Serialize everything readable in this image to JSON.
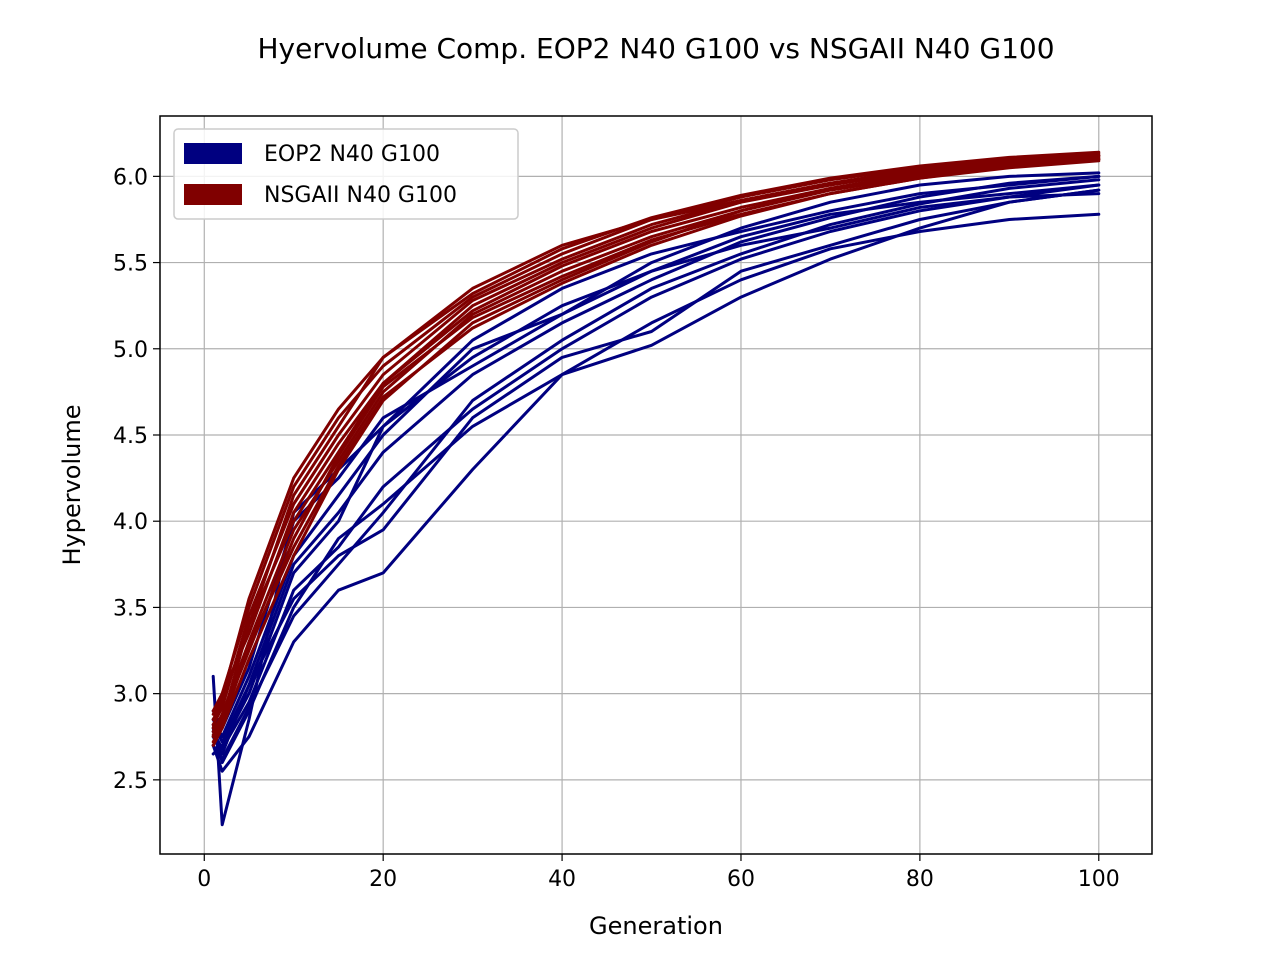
{
  "chart_data": {
    "type": "line",
    "title": "Hyervolume Comp. EOP2 N40 G100 vs NSGAII N40 G100",
    "xlabel": "Generation",
    "ylabel": "Hypervolume",
    "xlim": [
      -4.95,
      105.95
    ],
    "ylim": [
      2.07,
      6.35
    ],
    "xticks": [
      0,
      20,
      40,
      60,
      80,
      100
    ],
    "yticks": [
      2.5,
      3.0,
      3.5,
      4.0,
      4.5,
      5.0,
      5.5,
      6.0
    ],
    "xtick_labels": [
      "0",
      "20",
      "40",
      "60",
      "80",
      "100"
    ],
    "ytick_labels": [
      "2.5",
      "3.0",
      "3.5",
      "4.0",
      "4.5",
      "5.0",
      "5.5",
      "6.0"
    ],
    "grid": true,
    "legend_position": "top-left",
    "legend": [
      {
        "label": "EOP2 N40 G100",
        "color": "#000080"
      },
      {
        "label": "NSGAII N40 G100",
        "color": "#800000"
      }
    ],
    "x": [
      1,
      2,
      5,
      10,
      15,
      20,
      30,
      40,
      50,
      60,
      70,
      80,
      90,
      100
    ],
    "groups": [
      {
        "name": "EOP2 N40 G100",
        "color": "#000080",
        "runs": [
          [
            3.1,
            2.24,
            2.85,
            4.05,
            4.3,
            4.55,
            5.05,
            5.35,
            5.55,
            5.68,
            5.8,
            5.9,
            5.95,
            6.0
          ],
          [
            2.7,
            2.55,
            2.75,
            3.3,
            3.6,
            3.7,
            4.3,
            4.85,
            5.02,
            5.3,
            5.52,
            5.7,
            5.85,
            5.92
          ],
          [
            2.8,
            2.6,
            2.9,
            3.5,
            3.9,
            4.1,
            4.55,
            4.85,
            5.15,
            5.4,
            5.58,
            5.68,
            5.75,
            5.78
          ],
          [
            2.65,
            2.7,
            3.0,
            3.7,
            4.0,
            4.55,
            4.95,
            5.25,
            5.45,
            5.65,
            5.78,
            5.85,
            5.9,
            5.95
          ],
          [
            2.75,
            2.65,
            3.05,
            3.55,
            3.8,
            3.95,
            4.6,
            4.95,
            5.1,
            5.45,
            5.6,
            5.75,
            5.85,
            5.92
          ],
          [
            2.85,
            2.75,
            3.1,
            3.8,
            4.15,
            4.5,
            5.0,
            5.2,
            5.45,
            5.6,
            5.7,
            5.82,
            5.88,
            5.9
          ],
          [
            2.9,
            2.8,
            3.15,
            4.0,
            4.25,
            4.6,
            4.9,
            5.2,
            5.5,
            5.7,
            5.85,
            5.95,
            6.0,
            6.02
          ],
          [
            2.78,
            2.68,
            2.95,
            3.6,
            3.85,
            4.2,
            4.65,
            5.0,
            5.3,
            5.52,
            5.68,
            5.8,
            5.88,
            5.95
          ],
          [
            2.82,
            2.72,
            3.05,
            3.75,
            4.05,
            4.4,
            4.85,
            5.15,
            5.4,
            5.62,
            5.76,
            5.88,
            5.96,
            6.0
          ],
          [
            2.7,
            2.62,
            2.92,
            3.45,
            3.75,
            4.05,
            4.7,
            5.05,
            5.35,
            5.55,
            5.72,
            5.84,
            5.93,
            5.98
          ]
        ]
      },
      {
        "name": "NSGAII N40 G100",
        "color": "#800000",
        "runs": [
          [
            2.8,
            3.0,
            3.5,
            4.2,
            4.6,
            4.9,
            5.3,
            5.55,
            5.75,
            5.88,
            5.98,
            6.05,
            6.1,
            6.13
          ],
          [
            2.75,
            2.85,
            3.4,
            4.0,
            4.4,
            4.8,
            5.25,
            5.5,
            5.7,
            5.85,
            5.95,
            6.03,
            6.08,
            6.12
          ],
          [
            2.7,
            2.8,
            3.2,
            3.8,
            4.3,
            4.7,
            5.15,
            5.4,
            5.62,
            5.8,
            5.93,
            6.02,
            6.08,
            6.11
          ],
          [
            2.85,
            2.95,
            3.4,
            4.15,
            4.55,
            4.95,
            5.35,
            5.6,
            5.75,
            5.86,
            5.96,
            6.03,
            6.09,
            6.12
          ],
          [
            2.78,
            2.88,
            3.3,
            3.95,
            4.35,
            4.75,
            5.2,
            5.45,
            5.65,
            5.8,
            5.92,
            6.0,
            6.06,
            6.1
          ],
          [
            2.82,
            2.92,
            3.45,
            4.1,
            4.5,
            4.85,
            5.28,
            5.52,
            5.72,
            5.86,
            5.96,
            6.04,
            6.09,
            6.12
          ],
          [
            2.9,
            3.0,
            3.35,
            4.05,
            4.45,
            4.8,
            5.22,
            5.48,
            5.68,
            5.82,
            5.93,
            6.01,
            6.07,
            6.1
          ],
          [
            2.76,
            2.86,
            3.25,
            3.9,
            4.38,
            4.78,
            5.18,
            5.42,
            5.63,
            5.78,
            5.9,
            5.99,
            6.05,
            6.09
          ],
          [
            2.88,
            2.98,
            3.55,
            4.25,
            4.65,
            4.95,
            5.32,
            5.58,
            5.76,
            5.89,
            5.99,
            6.06,
            6.11,
            6.14
          ],
          [
            2.72,
            2.82,
            3.28,
            3.85,
            4.32,
            4.72,
            5.12,
            5.38,
            5.6,
            5.77,
            5.9,
            5.99,
            6.06,
            6.1
          ]
        ]
      }
    ]
  }
}
